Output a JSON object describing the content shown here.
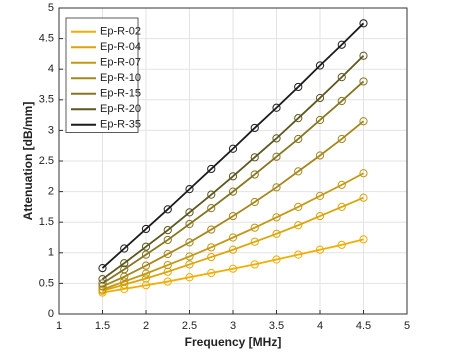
{
  "chart_data": {
    "type": "line",
    "x_label": "Frequency [MHz]",
    "y_label": "Attenuation [dB/mm]",
    "x": [
      1.5,
      1.75,
      2,
      2.25,
      2.5,
      2.75,
      3,
      3.25,
      3.5,
      3.75,
      4,
      4.25,
      4.5
    ],
    "series": [
      {
        "name": "Ep-R-02",
        "color": "#f2ad00",
        "values": [
          0.35,
          0.41,
          0.47,
          0.53,
          0.6,
          0.67,
          0.74,
          0.81,
          0.89,
          0.97,
          1.05,
          1.13,
          1.22
        ]
      },
      {
        "name": "Ep-R-04",
        "color": "#dca50a",
        "values": [
          0.38,
          0.48,
          0.58,
          0.69,
          0.81,
          0.93,
          1.05,
          1.18,
          1.31,
          1.45,
          1.6,
          1.75,
          1.9
        ]
      },
      {
        "name": "Ep-R-07",
        "color": "#c49812",
        "values": [
          0.4,
          0.53,
          0.66,
          0.8,
          0.94,
          1.09,
          1.25,
          1.41,
          1.58,
          1.75,
          1.93,
          2.11,
          2.3
        ]
      },
      {
        "name": "Ep-R-10",
        "color": "#a6871c",
        "values": [
          0.45,
          0.61,
          0.79,
          0.98,
          1.17,
          1.38,
          1.6,
          1.83,
          2.07,
          2.33,
          2.59,
          2.86,
          3.15
        ]
      },
      {
        "name": "Ep-R-15",
        "color": "#867520",
        "values": [
          0.5,
          0.73,
          0.97,
          1.21,
          1.47,
          1.73,
          2.0,
          2.28,
          2.57,
          2.86,
          3.17,
          3.48,
          3.8
        ]
      },
      {
        "name": "Ep-R-20",
        "color": "#5c5720",
        "values": [
          0.57,
          0.83,
          1.1,
          1.37,
          1.66,
          1.95,
          2.25,
          2.56,
          2.87,
          3.2,
          3.53,
          3.87,
          4.22
        ]
      },
      {
        "name": "Ep-R-35",
        "color": "#1c1c1c",
        "values": [
          0.75,
          1.07,
          1.39,
          1.71,
          2.04,
          2.37,
          2.7,
          3.04,
          3.37,
          3.71,
          4.06,
          4.4,
          4.75
        ]
      }
    ],
    "xlim": [
      1,
      5
    ],
    "xticks": [
      1,
      1.5,
      2,
      2.5,
      3,
      3.5,
      4,
      4.5,
      5
    ],
    "ylim": [
      0,
      5
    ],
    "yticks": [
      0,
      0.5,
      1,
      1.5,
      2,
      2.5,
      3,
      3.5,
      4,
      4.5,
      5
    ],
    "grid": true,
    "markers": true,
    "legend": "upper left"
  }
}
